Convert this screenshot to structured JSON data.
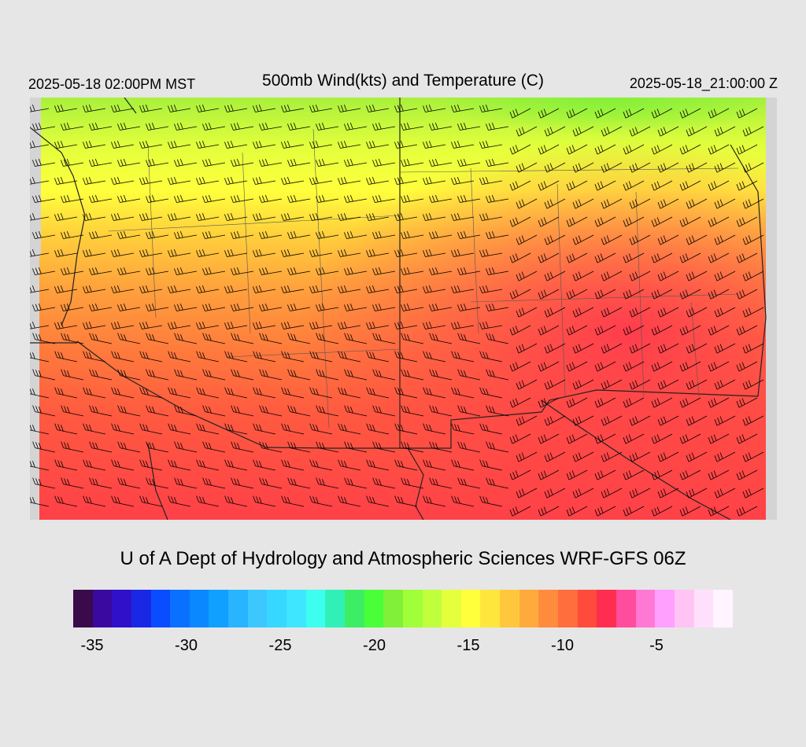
{
  "header": {
    "valid_local": "2025-05-18 02:00PM MST",
    "title": "500mb Wind(kts) and Temperature (C)",
    "valid_utc": "2025-05-18_21:00:00 Z"
  },
  "credit": "U of A Dept of Hydrology and Atmospheric Sciences WRF-GFS 06Z",
  "colorbar": {
    "colors": [
      "#3a0a4a",
      "#3a0aa0",
      "#3010c8",
      "#1a28e6",
      "#0a4cff",
      "#0a70ff",
      "#0a88ff",
      "#10a0ff",
      "#28b4ff",
      "#3cc8ff",
      "#36d8ff",
      "#3ee6ff",
      "#3cfff0",
      "#30f0b8",
      "#3cee64",
      "#48ff38",
      "#80f038",
      "#a0ff38",
      "#c0ff3c",
      "#e4ff3c",
      "#ffff3c",
      "#ffe63c",
      "#ffc83c",
      "#ffaa3c",
      "#ff8c3c",
      "#ff6e3c",
      "#ff4a3c",
      "#ff2e50",
      "#ff4c9c",
      "#ff78d4",
      "#ffa0ff",
      "#ffc4f4",
      "#ffe0fc",
      "#fff4ff"
    ],
    "tick_labels": [
      "-35",
      "-30",
      "-25",
      "-20",
      "-15",
      "-10",
      "-5"
    ]
  },
  "map": {
    "field": "500mb temperature (C) with wind barbs (kts)",
    "temp_range": [
      -20,
      -7
    ]
  }
}
